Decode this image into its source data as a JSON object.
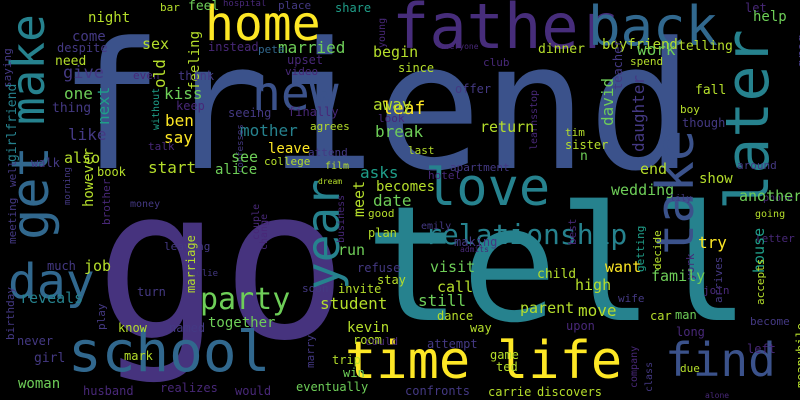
{
  "palette": {
    "dark_purple": "#472d7b",
    "purple": "#46337e",
    "indigo": "#3b528b",
    "blue": "#31688e",
    "teal": "#26828e",
    "cyan": "#1f9e89",
    "green": "#35b779",
    "lime": "#6ece58",
    "yellow": "#fde725",
    "olive": "#b5de2b",
    "grey_purple": "#443983",
    "deep": "#482878"
  },
  "words": [
    {
      "id": "friend",
      "text": "friend"
    },
    {
      "id": "go",
      "text": "go"
    },
    {
      "id": "tell",
      "text": "tell"
    },
    {
      "id": "father",
      "text": "father"
    },
    {
      "id": "back",
      "text": "back"
    },
    {
      "id": "home",
      "text": "home"
    },
    {
      "id": "get",
      "text": "get"
    },
    {
      "id": "make",
      "text": "make"
    },
    {
      "id": "new",
      "text": "new"
    },
    {
      "id": "later",
      "text": "later"
    },
    {
      "id": "love",
      "text": "love"
    },
    {
      "id": "take",
      "text": "take"
    },
    {
      "id": "school",
      "text": "school"
    },
    {
      "id": "time",
      "text": "time"
    },
    {
      "id": "life",
      "text": "life"
    },
    {
      "id": "find",
      "text": "find"
    },
    {
      "id": "day",
      "text": "day"
    },
    {
      "id": "party",
      "text": "party"
    },
    {
      "id": "year",
      "text": "year"
    },
    {
      "id": "relationship",
      "text": "relationship"
    },
    {
      "id": "night",
      "text": "night"
    },
    {
      "id": "bar",
      "text": "bar"
    },
    {
      "id": "feel",
      "text": "feel"
    },
    {
      "id": "hospital",
      "text": "hospital"
    },
    {
      "id": "place",
      "text": "place"
    },
    {
      "id": "share",
      "text": "share"
    },
    {
      "id": "young",
      "text": "young"
    },
    {
      "id": "let",
      "text": "let"
    },
    {
      "id": "help",
      "text": "help"
    },
    {
      "id": "greg",
      "text": "greg"
    },
    {
      "id": "saying",
      "text": "saying"
    },
    {
      "id": "come",
      "text": "come"
    },
    {
      "id": "sex",
      "text": "sex"
    },
    {
      "id": "feeling",
      "text": "feeling"
    },
    {
      "id": "married",
      "text": "married"
    },
    {
      "id": "dinner",
      "text": "dinner"
    },
    {
      "id": "boyfriend",
      "text": "boyfriend"
    },
    {
      "id": "telling",
      "text": "telling"
    },
    {
      "id": "girlfriend",
      "text": "girlfriend"
    },
    {
      "id": "despite",
      "text": "despite"
    },
    {
      "id": "instead",
      "text": "instead"
    },
    {
      "id": "pete",
      "text": "pete"
    },
    {
      "id": "everyone",
      "text": "everyone"
    },
    {
      "id": "need",
      "text": "need"
    },
    {
      "id": "upset",
      "text": "upset"
    },
    {
      "id": "begin",
      "text": "begin"
    },
    {
      "id": "club",
      "text": "club"
    },
    {
      "id": "work",
      "text": "work"
    },
    {
      "id": "teacher",
      "text": "teacher"
    },
    {
      "id": "spend",
      "text": "spend"
    },
    {
      "id": "give",
      "text": "give"
    },
    {
      "id": "even",
      "text": "even"
    },
    {
      "id": "think",
      "text": "think"
    },
    {
      "id": "video",
      "text": "video"
    },
    {
      "id": "since",
      "text": "since"
    },
    {
      "id": "offer",
      "text": "offer"
    },
    {
      "id": "one",
      "text": "one"
    },
    {
      "id": "without",
      "text": "without"
    },
    {
      "id": "old",
      "text": "old"
    },
    {
      "id": "kiss",
      "text": "kiss"
    },
    {
      "id": "thing",
      "text": "thing"
    },
    {
      "id": "next",
      "text": "next"
    },
    {
      "id": "keep",
      "text": "keep"
    },
    {
      "id": "ben",
      "text": "ben"
    },
    {
      "id": "seeing",
      "text": "seeing"
    },
    {
      "id": "finally",
      "text": "finally"
    },
    {
      "id": "leaf",
      "text": "leaf"
    },
    {
      "id": "away",
      "text": "away"
    },
    {
      "id": "stop",
      "text": "stop"
    },
    {
      "id": "david",
      "text": "david"
    },
    {
      "id": "daughter",
      "text": "daughter"
    },
    {
      "id": "fall",
      "text": "fall"
    },
    {
      "id": "boy",
      "text": "boy"
    },
    {
      "id": "like",
      "text": "like"
    },
    {
      "id": "say",
      "text": "say"
    },
    {
      "id": "talk",
      "text": "talk"
    },
    {
      "id": "mother",
      "text": "mother"
    },
    {
      "id": "agrees",
      "text": "agrees"
    },
    {
      "id": "look",
      "text": "look"
    },
    {
      "id": "learns",
      "text": "learns"
    },
    {
      "id": "return",
      "text": "return"
    },
    {
      "id": "tim",
      "text": "tim"
    },
    {
      "id": "though",
      "text": "though"
    },
    {
      "id": "break",
      "text": "break"
    },
    {
      "id": "sister",
      "text": "sister"
    },
    {
      "id": "also",
      "text": "also"
    },
    {
      "id": "confesses",
      "text": "confesses"
    },
    {
      "id": "leave",
      "text": "leave"
    },
    {
      "id": "attend",
      "text": "attend"
    },
    {
      "id": "last",
      "text": "last"
    },
    {
      "id": "n",
      "text": "n"
    },
    {
      "id": "walk",
      "text": "walk"
    },
    {
      "id": "start",
      "text": "start"
    },
    {
      "id": "see",
      "text": "see"
    },
    {
      "id": "college",
      "text": "college"
    },
    {
      "id": "film",
      "text": "film"
    },
    {
      "id": "end",
      "text": "end"
    },
    {
      "id": "around",
      "text": "around"
    },
    {
      "id": "meeting",
      "text": "meeting"
    },
    {
      "id": "well",
      "text": "well"
    },
    {
      "id": "book",
      "text": "book"
    },
    {
      "id": "alice",
      "text": "alice"
    },
    {
      "id": "asks",
      "text": "asks"
    },
    {
      "id": "hotel",
      "text": "hotel"
    },
    {
      "id": "apartment",
      "text": "apartment"
    },
    {
      "id": "show",
      "text": "show"
    },
    {
      "id": "morning",
      "text": "morning"
    },
    {
      "id": "however",
      "text": "however"
    },
    {
      "id": "becomes",
      "text": "becomes"
    },
    {
      "id": "wedding",
      "text": "wedding"
    },
    {
      "id": "phone",
      "text": "phone"
    },
    {
      "id": "another",
      "text": "another"
    },
    {
      "id": "money",
      "text": "money"
    },
    {
      "id": "dream",
      "text": "dream"
    },
    {
      "id": "date",
      "text": "date"
    },
    {
      "id": "lily",
      "text": "lily"
    },
    {
      "id": "brother",
      "text": "brother"
    },
    {
      "id": "meet",
      "text": "meet"
    },
    {
      "id": "good",
      "text": "good"
    },
    {
      "id": "emily",
      "text": "emily"
    },
    {
      "id": "going",
      "text": "going"
    },
    {
      "id": "couple",
      "text": "couple"
    },
    {
      "id": "business",
      "text": "business"
    },
    {
      "id": "leaving",
      "text": "leaving"
    },
    {
      "id": "change",
      "text": "change"
    },
    {
      "id": "plan",
      "text": "plan"
    },
    {
      "id": "making",
      "text": "making"
    },
    {
      "id": "best",
      "text": "best"
    },
    {
      "id": "letter",
      "text": "letter"
    },
    {
      "id": "try",
      "text": "try"
    },
    {
      "id": "admits",
      "text": "admits"
    },
    {
      "id": "run",
      "text": "run"
    },
    {
      "id": "getting",
      "text": "getting"
    },
    {
      "id": "decide",
      "text": "decide"
    },
    {
      "id": "house",
      "text": "house"
    },
    {
      "id": "much",
      "text": "much"
    },
    {
      "id": "job",
      "text": "job"
    },
    {
      "id": "marriage",
      "text": "marriage"
    },
    {
      "id": "julie",
      "text": "julie"
    },
    {
      "id": "refuse",
      "text": "refuse"
    },
    {
      "id": "want",
      "text": "want"
    },
    {
      "id": "visit",
      "text": "visit"
    },
    {
      "id": "york",
      "text": "york"
    },
    {
      "id": "arrives",
      "text": "arrives"
    },
    {
      "id": "stay",
      "text": "stay"
    },
    {
      "id": "accepts",
      "text": "accepts"
    },
    {
      "id": "child",
      "text": "child"
    },
    {
      "id": "family",
      "text": "family"
    },
    {
      "id": "call",
      "text": "call"
    },
    {
      "id": "soon",
      "text": "soon"
    },
    {
      "id": "invite",
      "text": "invite"
    },
    {
      "id": "high",
      "text": "high"
    },
    {
      "id": "turn",
      "text": "turn"
    },
    {
      "id": "join",
      "text": "join"
    },
    {
      "id": "birthday",
      "text": "birthday"
    },
    {
      "id": "reveals",
      "text": "reveals"
    },
    {
      "id": "student",
      "text": "student"
    },
    {
      "id": "still",
      "text": "still"
    },
    {
      "id": "parent",
      "text": "parent"
    },
    {
      "id": "wife",
      "text": "wife"
    },
    {
      "id": "car",
      "text": "car"
    },
    {
      "id": "man",
      "text": "man"
    },
    {
      "id": "become",
      "text": "become"
    },
    {
      "id": "play",
      "text": "play"
    },
    {
      "id": "together",
      "text": "together"
    },
    {
      "id": "move",
      "text": "move"
    },
    {
      "id": "dance",
      "text": "dance"
    },
    {
      "id": "upon",
      "text": "upon"
    },
    {
      "id": "long",
      "text": "long"
    },
    {
      "id": "know",
      "text": "know"
    },
    {
      "id": "named",
      "text": "named"
    },
    {
      "id": "kevin",
      "text": "kevin"
    },
    {
      "id": "way",
      "text": "way"
    },
    {
      "id": "never",
      "text": "never"
    },
    {
      "id": "girl",
      "text": "girl"
    },
    {
      "id": "marry",
      "text": "marry"
    },
    {
      "id": "room",
      "text": "room"
    },
    {
      "id": "could",
      "text": "could"
    },
    {
      "id": "attempt",
      "text": "attempt"
    },
    {
      "id": "left",
      "text": "left"
    },
    {
      "id": "mark",
      "text": "mark"
    },
    {
      "id": "trip",
      "text": "trip"
    },
    {
      "id": "game",
      "text": "game"
    },
    {
      "id": "class",
      "text": "class"
    },
    {
      "id": "due",
      "text": "due"
    },
    {
      "id": "company",
      "text": "company"
    },
    {
      "id": "meanwhile",
      "text": "meanwhile"
    },
    {
      "id": "woman",
      "text": "woman"
    },
    {
      "id": "realizes",
      "text": "realizes"
    },
    {
      "id": "win",
      "text": "win"
    },
    {
      "id": "ted",
      "text": "ted"
    },
    {
      "id": "husband",
      "text": "husband"
    },
    {
      "id": "would",
      "text": "would"
    },
    {
      "id": "eventually",
      "text": "eventually"
    },
    {
      "id": "confronts",
      "text": "confronts"
    },
    {
      "id": "carrie",
      "text": "carrie"
    },
    {
      "id": "discovers",
      "text": "discovers"
    },
    {
      "id": "alone",
      "text": "alone"
    }
  ]
}
